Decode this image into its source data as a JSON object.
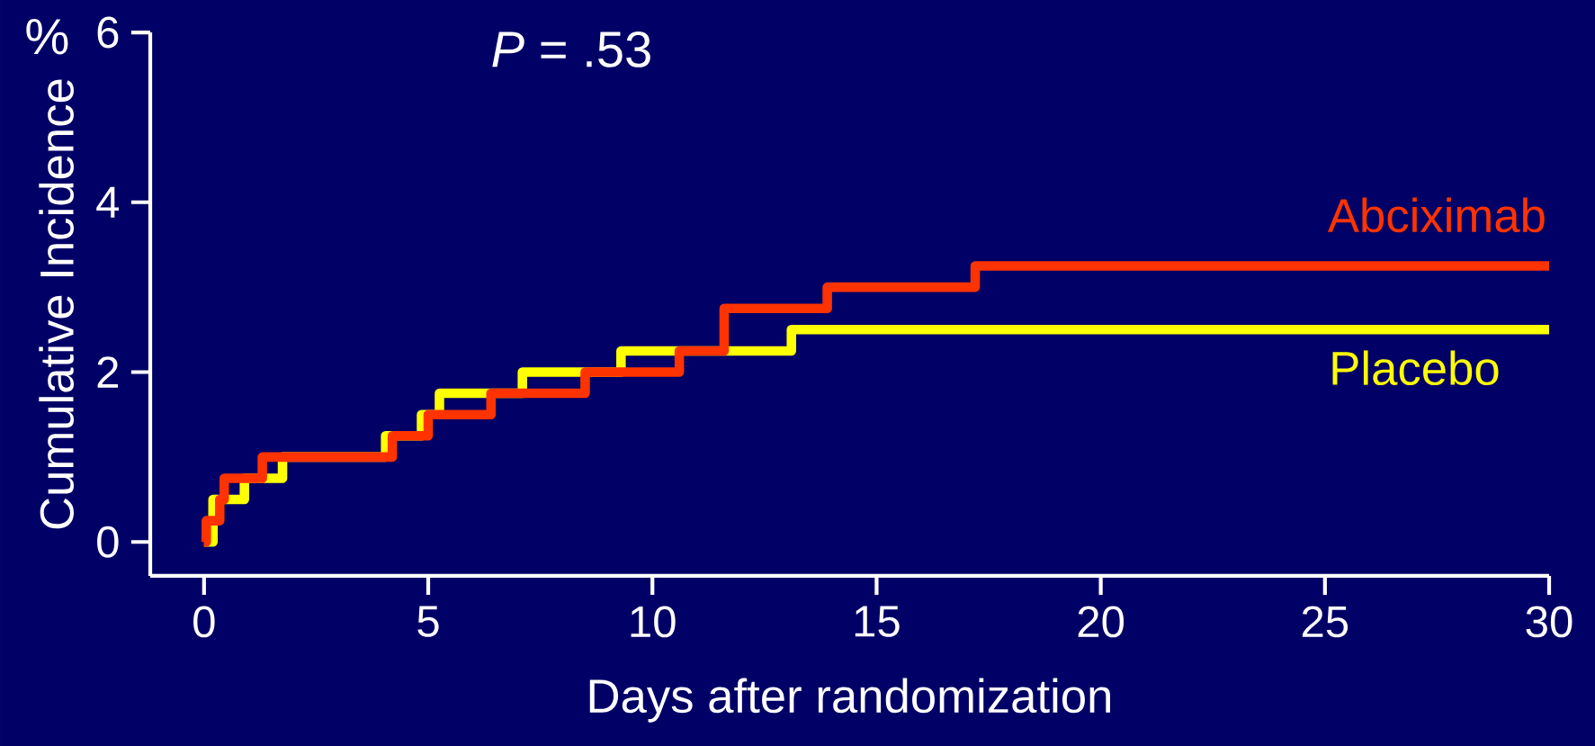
{
  "chart_data": {
    "type": "step",
    "xlabel": "Days after randomization",
    "ylabel": "Cumulative Incidence",
    "annotations": [
      "%",
      "*P* = .53"
    ],
    "series": [
      {
        "name": "Abciximab",
        "color": "#ff3300",
        "x": [
          0,
          0.05,
          0.35,
          0.45,
          1.3,
          4.2,
          5.0,
          6.4,
          8.5,
          10.6,
          11.6,
          13.9,
          17.2,
          30
        ],
        "values": [
          0,
          0.25,
          0.5,
          0.75,
          1.0,
          1.25,
          1.5,
          1.75,
          2.0,
          2.25,
          2.75,
          3.0,
          3.25,
          3.25
        ]
      },
      {
        "name": "Placebo",
        "color": "#ffff00",
        "x": [
          0,
          0.2,
          0.9,
          1.75,
          4.05,
          4.85,
          5.25,
          7.1,
          9.3,
          13.1,
          30
        ],
        "values": [
          0,
          0.5,
          0.75,
          1.0,
          1.25,
          1.5,
          1.75,
          2.0,
          2.25,
          2.5,
          2.5
        ]
      }
    ],
    "xlim": [
      -1.2,
      30
    ],
    "ylim": [
      -0.4,
      6
    ],
    "xticks": [
      0,
      5,
      10,
      15,
      20,
      25,
      30
    ],
    "yticks": [
      0,
      2,
      4,
      6
    ],
    "grid": false,
    "legend": false,
    "marker": "none",
    "line_style": "solid"
  }
}
